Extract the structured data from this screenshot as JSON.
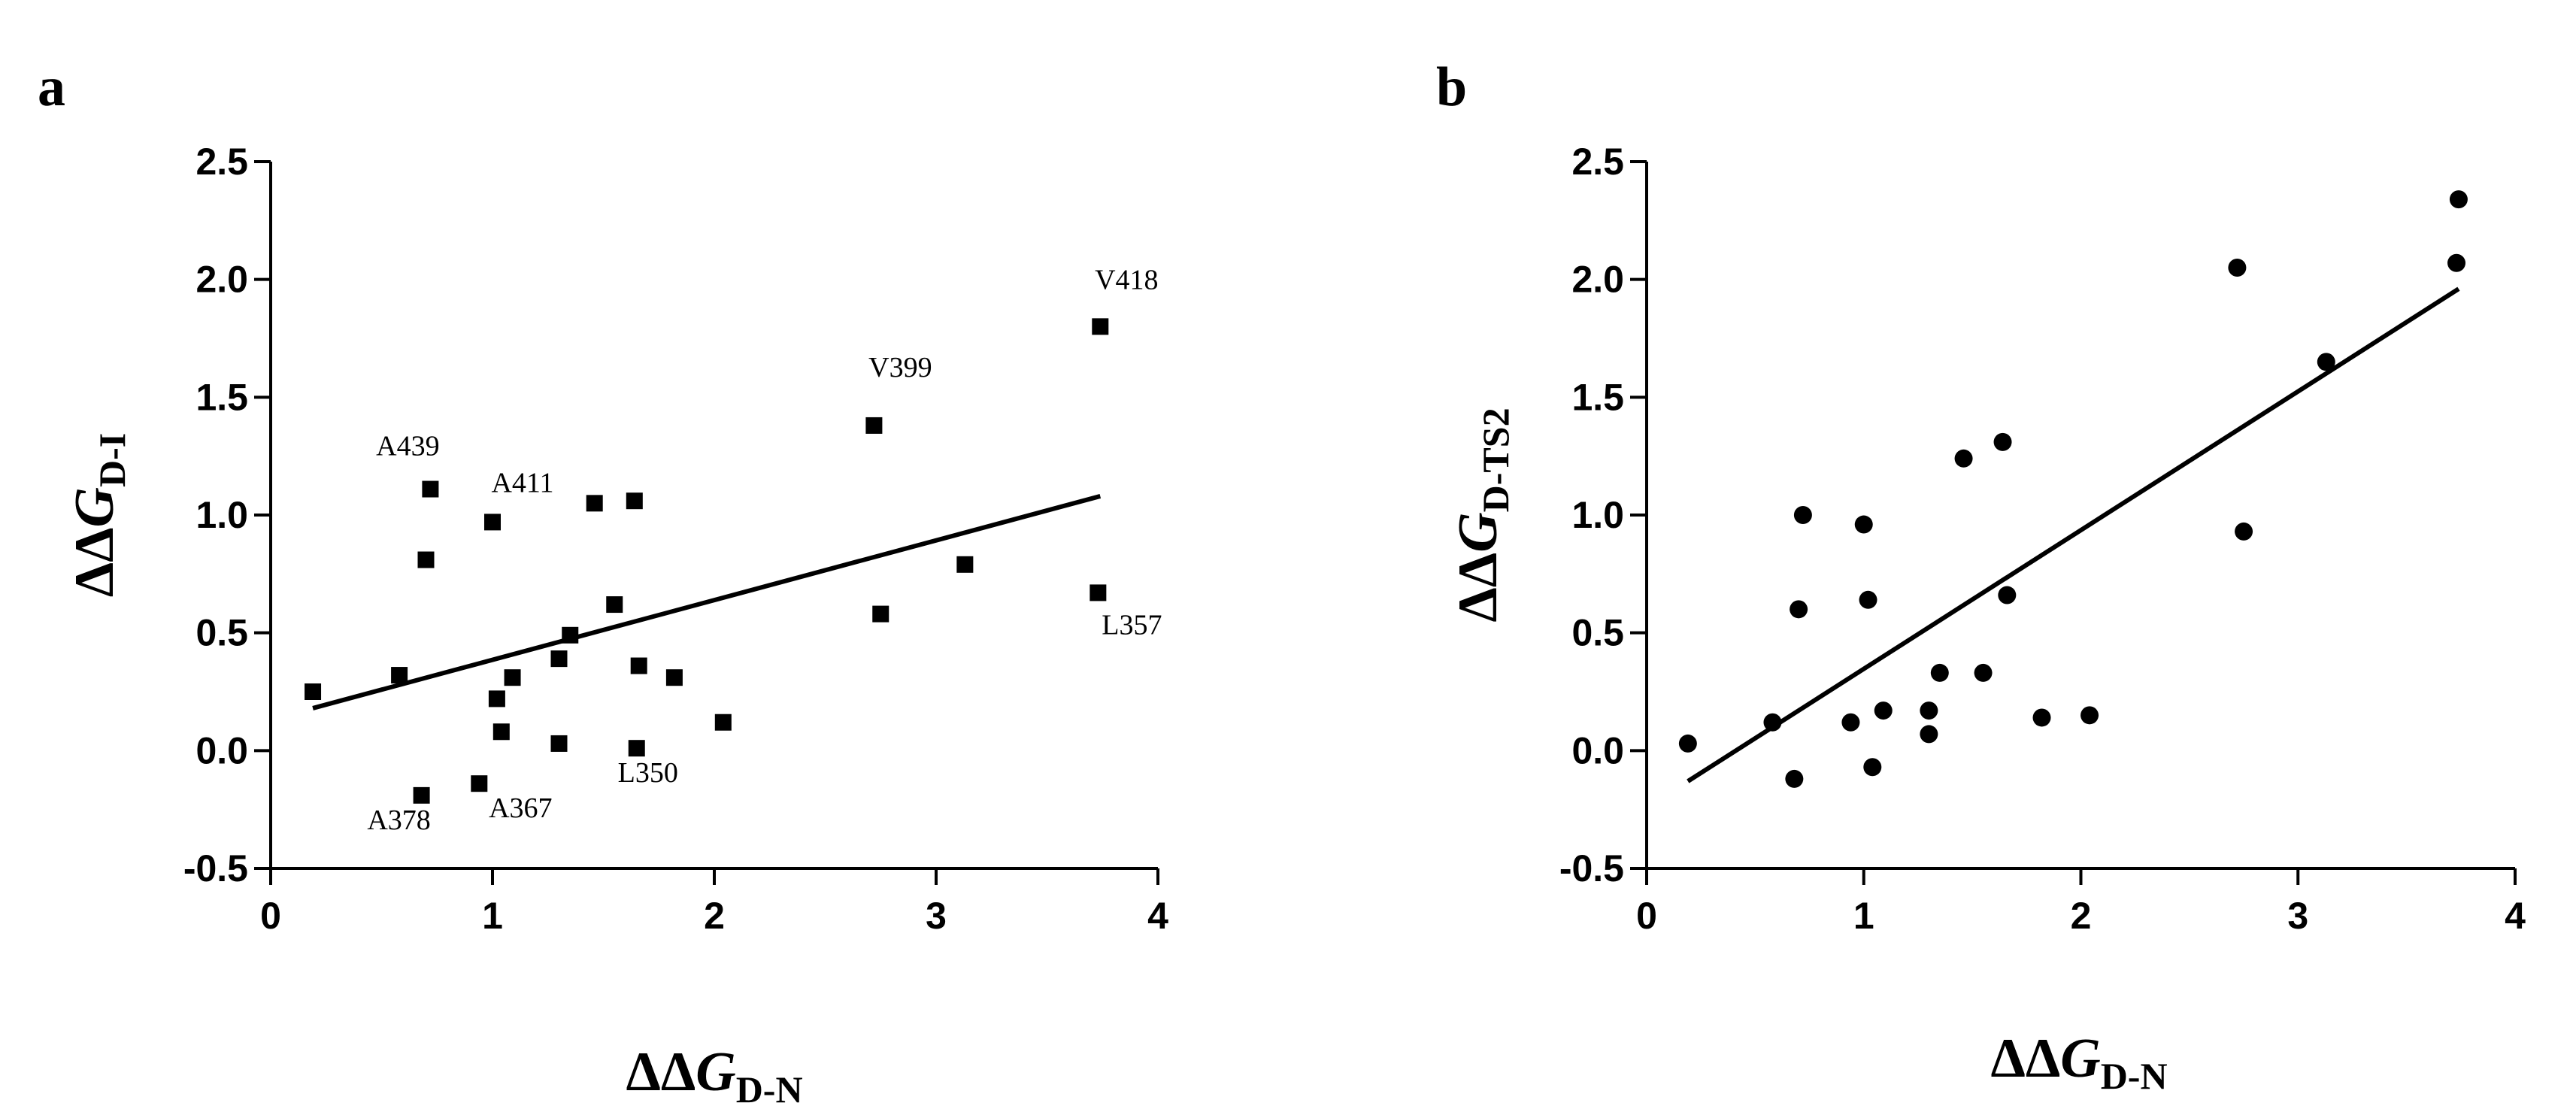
{
  "chart_data": [
    {
      "panel": "a",
      "type": "scatter",
      "marker": "square",
      "xlabel": {
        "prefix": "ΔΔ",
        "var": "G",
        "sub": "D-N"
      },
      "ylabel": {
        "prefix": "ΔΔ",
        "var": "G",
        "sub": "D-I"
      },
      "xlim": [
        0,
        4
      ],
      "ylim": [
        -0.5,
        2.5
      ],
      "xticks": [
        0,
        1,
        2,
        3,
        4
      ],
      "xtick_labels": [
        "0",
        "1",
        "2",
        "3",
        "4"
      ],
      "yticks": [
        -0.5,
        0.0,
        0.5,
        1.0,
        1.5,
        2.0,
        2.5
      ],
      "ytick_labels": [
        "-0.5",
        "0.0",
        "0.5",
        "1.0",
        "1.5",
        "2.0",
        "2.5"
      ],
      "points": [
        {
          "x": 0.19,
          "y": 0.25
        },
        {
          "x": 0.58,
          "y": 0.32
        },
        {
          "x": 0.68,
          "y": -0.19,
          "label": "A378"
        },
        {
          "x": 0.7,
          "y": 0.81
        },
        {
          "x": 0.72,
          "y": 1.11,
          "label": "A439"
        },
        {
          "x": 0.94,
          "y": -0.14,
          "label": "A367"
        },
        {
          "x": 1.0,
          "y": 0.97,
          "label": "A411"
        },
        {
          "x": 1.02,
          "y": 0.22
        },
        {
          "x": 1.04,
          "y": 0.08
        },
        {
          "x": 1.09,
          "y": 0.31
        },
        {
          "x": 1.3,
          "y": 0.39
        },
        {
          "x": 1.3,
          "y": 0.03
        },
        {
          "x": 1.35,
          "y": 0.49
        },
        {
          "x": 1.46,
          "y": 1.05
        },
        {
          "x": 1.55,
          "y": 0.62
        },
        {
          "x": 1.64,
          "y": 1.06
        },
        {
          "x": 1.65,
          "y": 0.01,
          "label": "L350"
        },
        {
          "x": 1.66,
          "y": 0.36
        },
        {
          "x": 1.82,
          "y": 0.31
        },
        {
          "x": 2.04,
          "y": 0.12
        },
        {
          "x": 2.72,
          "y": 1.38,
          "label": "V399"
        },
        {
          "x": 2.75,
          "y": 0.58
        },
        {
          "x": 3.13,
          "y": 0.79
        },
        {
          "x": 3.73,
          "y": 0.67,
          "label": "L357"
        },
        {
          "x": 3.74,
          "y": 1.8,
          "label": "V418"
        }
      ],
      "fit_line": {
        "x": [
          0.19,
          3.74
        ],
        "y": [
          0.18,
          1.08
        ]
      }
    },
    {
      "panel": "b",
      "type": "scatter",
      "marker": "circle",
      "xlabel": {
        "prefix": "ΔΔ",
        "var": "G",
        "sub": "D-N"
      },
      "ylabel": {
        "prefix": "ΔΔ",
        "var": "G",
        "sub": "D-TS2"
      },
      "xlim": [
        0,
        4
      ],
      "ylim": [
        -0.5,
        2.5
      ],
      "xticks": [
        0,
        1,
        2,
        3,
        4
      ],
      "xtick_labels": [
        "0",
        "1",
        "2",
        "3",
        "4"
      ],
      "yticks": [
        -0.5,
        0.0,
        0.5,
        1.0,
        1.5,
        2.0,
        2.5
      ],
      "ytick_labels": [
        "-0.5",
        "0.0",
        "0.5",
        "1.0",
        "1.5",
        "2.0",
        "2.5"
      ],
      "points": [
        {
          "x": 0.19,
          "y": 0.03
        },
        {
          "x": 0.58,
          "y": 0.12
        },
        {
          "x": 0.68,
          "y": -0.12
        },
        {
          "x": 0.7,
          "y": 0.6
        },
        {
          "x": 0.72,
          "y": 1.0
        },
        {
          "x": 0.94,
          "y": 0.12
        },
        {
          "x": 1.0,
          "y": 0.96
        },
        {
          "x": 1.02,
          "y": 0.64
        },
        {
          "x": 1.04,
          "y": -0.07
        },
        {
          "x": 1.09,
          "y": 0.17
        },
        {
          "x": 1.3,
          "y": 0.17
        },
        {
          "x": 1.3,
          "y": 0.07
        },
        {
          "x": 1.35,
          "y": 0.33
        },
        {
          "x": 1.46,
          "y": 1.24
        },
        {
          "x": 1.55,
          "y": 0.33
        },
        {
          "x": 1.64,
          "y": 1.31
        },
        {
          "x": 1.66,
          "y": 0.66
        },
        {
          "x": 1.82,
          "y": 0.14
        },
        {
          "x": 2.04,
          "y": 0.15
        },
        {
          "x": 2.72,
          "y": 2.05
        },
        {
          "x": 2.75,
          "y": 0.93
        },
        {
          "x": 3.13,
          "y": 1.65
        },
        {
          "x": 3.73,
          "y": 2.07
        },
        {
          "x": 3.74,
          "y": 2.34
        }
      ],
      "fit_line": {
        "x": [
          0.19,
          3.74
        ],
        "y": [
          -0.13,
          1.96
        ]
      }
    }
  ]
}
